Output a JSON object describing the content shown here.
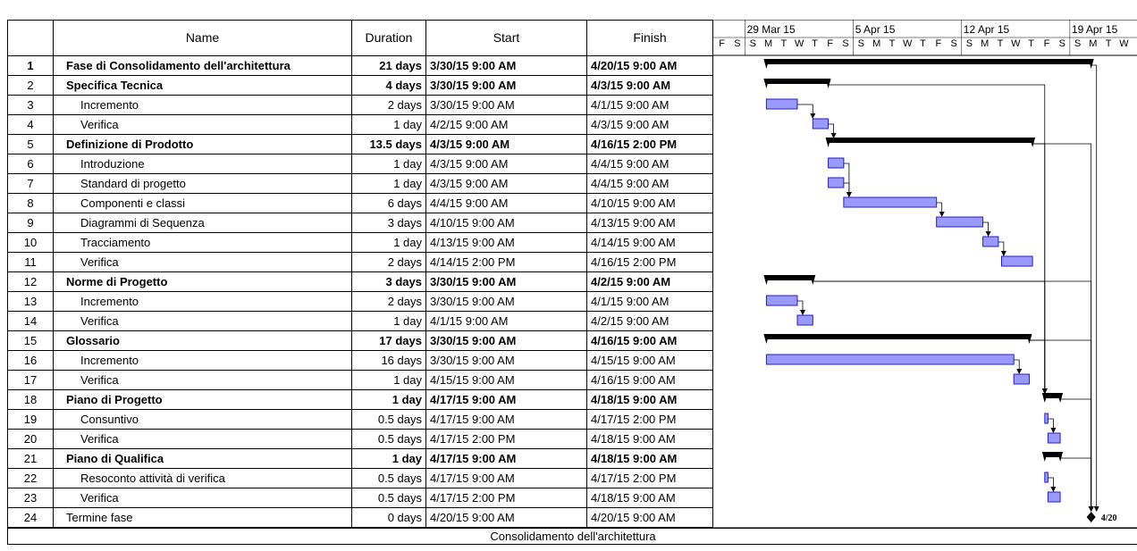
{
  "table": {
    "headers": {
      "id": "",
      "name": "Name",
      "duration": "Duration",
      "start": "Start",
      "finish": "Finish"
    },
    "rows": [
      {
        "id": "1",
        "name": "Fase di Consolidamento dell'architettura",
        "duration": "21 days",
        "start": "3/30/15 9:00 AM",
        "finish": "4/20/15 9:00 AM",
        "kind": "project",
        "level": 0
      },
      {
        "id": "2",
        "name": "Specifica Tecnica",
        "duration": "4 days",
        "start": "3/30/15 9:00 AM",
        "finish": "4/3/15 9:00 AM",
        "kind": "summary",
        "level": 1
      },
      {
        "id": "3",
        "name": "Incremento",
        "duration": "2 days",
        "start": "3/30/15 9:00 AM",
        "finish": "4/1/15 9:00 AM",
        "kind": "task",
        "level": 2
      },
      {
        "id": "4",
        "name": "Verifica",
        "duration": "1 day",
        "start": "4/2/15 9:00 AM",
        "finish": "4/3/15 9:00 AM",
        "kind": "task",
        "level": 2
      },
      {
        "id": "5",
        "name": "Definizione di Prodotto",
        "duration": "13.5 days",
        "start": "4/3/15 9:00 AM",
        "finish": "4/16/15 2:00 PM",
        "kind": "summary",
        "level": 1
      },
      {
        "id": "6",
        "name": "Introduzione",
        "duration": "1 day",
        "start": "4/3/15 9:00 AM",
        "finish": "4/4/15 9:00 AM",
        "kind": "task",
        "level": 2
      },
      {
        "id": "7",
        "name": "Standard di progetto",
        "duration": "1 day",
        "start": "4/3/15 9:00 AM",
        "finish": "4/4/15 9:00 AM",
        "kind": "task",
        "level": 2
      },
      {
        "id": "8",
        "name": "Componenti e classi",
        "duration": "6 days",
        "start": "4/4/15 9:00 AM",
        "finish": "4/10/15 9:00 AM",
        "kind": "task",
        "level": 2
      },
      {
        "id": "9",
        "name": "Diagrammi di Sequenza",
        "duration": "3 days",
        "start": "4/10/15 9:00 AM",
        "finish": "4/13/15 9:00 AM",
        "kind": "task",
        "level": 2
      },
      {
        "id": "10",
        "name": "Tracciamento",
        "duration": "1 day",
        "start": "4/13/15 9:00 AM",
        "finish": "4/14/15 9:00 AM",
        "kind": "task",
        "level": 2
      },
      {
        "id": "11",
        "name": "Verifica",
        "duration": "2 days",
        "start": "4/14/15 2:00 PM",
        "finish": "4/16/15 2:00 PM",
        "kind": "task",
        "level": 2
      },
      {
        "id": "12",
        "name": "Norme di Progetto",
        "duration": "3 days",
        "start": "3/30/15 9:00 AM",
        "finish": "4/2/15 9:00 AM",
        "kind": "summary",
        "level": 1
      },
      {
        "id": "13",
        "name": "Incremento",
        "duration": "2 days",
        "start": "3/30/15 9:00 AM",
        "finish": "4/1/15 9:00 AM",
        "kind": "task",
        "level": 2
      },
      {
        "id": "14",
        "name": "Verifica",
        "duration": "1 day",
        "start": "4/1/15 9:00 AM",
        "finish": "4/2/15 9:00 AM",
        "kind": "task",
        "level": 2
      },
      {
        "id": "15",
        "name": "Glossario",
        "duration": "17 days",
        "start": "3/30/15 9:00 AM",
        "finish": "4/16/15 9:00 AM",
        "kind": "summary",
        "level": 1
      },
      {
        "id": "16",
        "name": "Incremento",
        "duration": "16 days",
        "start": "3/30/15 9:00 AM",
        "finish": "4/15/15 9:00 AM",
        "kind": "task",
        "level": 2
      },
      {
        "id": "17",
        "name": "Verifica",
        "duration": "1 day",
        "start": "4/15/15 9:00 AM",
        "finish": "4/16/15 9:00 AM",
        "kind": "task",
        "level": 2
      },
      {
        "id": "18",
        "name": "Piano di Progetto",
        "duration": "1 day",
        "start": "4/17/15 9:00 AM",
        "finish": "4/18/15 9:00 AM",
        "kind": "summary",
        "level": 1
      },
      {
        "id": "19",
        "name": "Consuntivo",
        "duration": "0.5 days",
        "start": "4/17/15 9:00 AM",
        "finish": "4/17/15 2:00 PM",
        "kind": "task",
        "level": 2
      },
      {
        "id": "20",
        "name": "Verifica",
        "duration": "0.5 days",
        "start": "4/17/15 2:00 PM",
        "finish": "4/18/15 9:00 AM",
        "kind": "task",
        "level": 2
      },
      {
        "id": "21",
        "name": "Piano di Qualifica",
        "duration": "1 day",
        "start": "4/17/15 9:00 AM",
        "finish": "4/18/15 9:00 AM",
        "kind": "summary",
        "level": 1
      },
      {
        "id": "22",
        "name": "Resoconto attività di verifica",
        "duration": "0.5 days",
        "start": "4/17/15 9:00 AM",
        "finish": "4/17/15 2:00 PM",
        "kind": "task",
        "level": 2
      },
      {
        "id": "23",
        "name": "Verifica",
        "duration": "0.5 days",
        "start": "4/17/15 2:00 PM",
        "finish": "4/18/15 9:00 AM",
        "kind": "task",
        "level": 2
      },
      {
        "id": "24",
        "name": "Termine fase",
        "duration": "0 days",
        "start": "4/20/15 9:00 AM",
        "finish": "4/20/15 9:00 AM",
        "kind": "milestone",
        "level": 1
      }
    ]
  },
  "timescale": {
    "weeks": [
      "29 Mar 15",
      "5 Apr 15",
      "12 Apr 15",
      "19 Apr 15"
    ],
    "day_letters": [
      "F",
      "S",
      "S",
      "M",
      "T",
      "W",
      "T",
      "F",
      "S",
      "S",
      "M",
      "T",
      "W",
      "T",
      "F",
      "S",
      "S",
      "M",
      "T",
      "W",
      "T",
      "F",
      "S",
      "S",
      "M",
      "T",
      "W"
    ]
  },
  "chart_data": {
    "type": "gantt",
    "timeline_start": "2015-03-27",
    "tasks": [
      {
        "id": 1,
        "start": "2015-03-30T09:00",
        "finish": "2015-04-20T09:00",
        "kind": "project"
      },
      {
        "id": 2,
        "start": "2015-03-30T09:00",
        "finish": "2015-04-03T09:00",
        "kind": "summary"
      },
      {
        "id": 3,
        "start": "2015-03-30T09:00",
        "finish": "2015-04-01T09:00",
        "kind": "task"
      },
      {
        "id": 4,
        "start": "2015-04-02T09:00",
        "finish": "2015-04-03T09:00",
        "kind": "task"
      },
      {
        "id": 5,
        "start": "2015-04-03T09:00",
        "finish": "2015-04-16T14:00",
        "kind": "summary"
      },
      {
        "id": 6,
        "start": "2015-04-03T09:00",
        "finish": "2015-04-04T09:00",
        "kind": "task"
      },
      {
        "id": 7,
        "start": "2015-04-03T09:00",
        "finish": "2015-04-04T09:00",
        "kind": "task"
      },
      {
        "id": 8,
        "start": "2015-04-04T09:00",
        "finish": "2015-04-10T09:00",
        "kind": "task"
      },
      {
        "id": 9,
        "start": "2015-04-10T09:00",
        "finish": "2015-04-13T09:00",
        "kind": "task"
      },
      {
        "id": 10,
        "start": "2015-04-13T09:00",
        "finish": "2015-04-14T09:00",
        "kind": "task"
      },
      {
        "id": 11,
        "start": "2015-04-14T14:00",
        "finish": "2015-04-16T14:00",
        "kind": "task"
      },
      {
        "id": 12,
        "start": "2015-03-30T09:00",
        "finish": "2015-04-02T09:00",
        "kind": "summary"
      },
      {
        "id": 13,
        "start": "2015-03-30T09:00",
        "finish": "2015-04-01T09:00",
        "kind": "task"
      },
      {
        "id": 14,
        "start": "2015-04-01T09:00",
        "finish": "2015-04-02T09:00",
        "kind": "task"
      },
      {
        "id": 15,
        "start": "2015-03-30T09:00",
        "finish": "2015-04-16T09:00",
        "kind": "summary"
      },
      {
        "id": 16,
        "start": "2015-03-30T09:00",
        "finish": "2015-04-15T09:00",
        "kind": "task"
      },
      {
        "id": 17,
        "start": "2015-04-15T09:00",
        "finish": "2015-04-16T09:00",
        "kind": "task"
      },
      {
        "id": 18,
        "start": "2015-04-17T09:00",
        "finish": "2015-04-18T09:00",
        "kind": "summary"
      },
      {
        "id": 19,
        "start": "2015-04-17T09:00",
        "finish": "2015-04-17T14:00",
        "kind": "task"
      },
      {
        "id": 20,
        "start": "2015-04-17T14:00",
        "finish": "2015-04-18T09:00",
        "kind": "task"
      },
      {
        "id": 21,
        "start": "2015-04-17T09:00",
        "finish": "2015-04-18T09:00",
        "kind": "summary"
      },
      {
        "id": 22,
        "start": "2015-04-17T09:00",
        "finish": "2015-04-17T14:00",
        "kind": "task"
      },
      {
        "id": 23,
        "start": "2015-04-17T14:00",
        "finish": "2015-04-18T09:00",
        "kind": "task"
      },
      {
        "id": 24,
        "start": "2015-04-20T09:00",
        "finish": "2015-04-20T09:00",
        "kind": "milestone",
        "label": "4/20"
      }
    ],
    "links": [
      [
        3,
        4
      ],
      [
        4,
        5
      ],
      [
        6,
        8
      ],
      [
        7,
        8
      ],
      [
        8,
        9
      ],
      [
        9,
        10
      ],
      [
        10,
        11
      ],
      [
        13,
        14
      ],
      [
        16,
        17
      ],
      [
        2,
        18
      ],
      [
        12,
        18
      ],
      [
        5,
        18
      ],
      [
        15,
        18
      ],
      [
        19,
        20
      ],
      [
        22,
        23
      ],
      [
        1,
        24
      ],
      [
        5,
        24
      ],
      [
        12,
        24
      ],
      [
        15,
        24
      ],
      [
        18,
        24
      ],
      [
        21,
        24
      ]
    ],
    "task_color": "#9999ff",
    "task_border": "#1f1fd1",
    "summary_color": "#000000"
  },
  "footer": {
    "title": "Consolidamento dell'architettura"
  }
}
